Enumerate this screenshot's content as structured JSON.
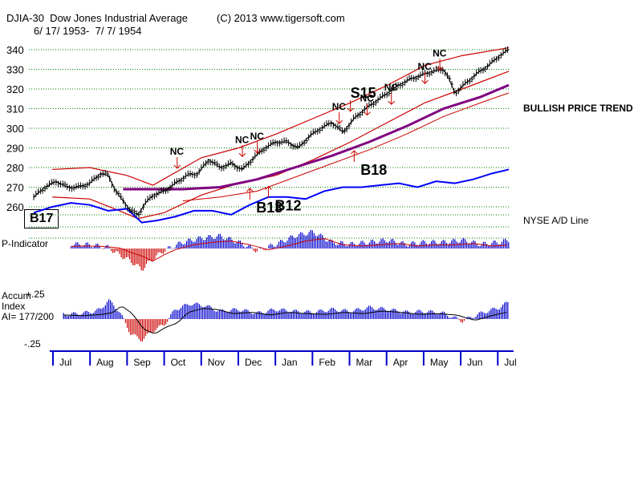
{
  "header": {
    "ticker_title": "DJIA-30  Dow Jones Industrial Average",
    "copyright": "(C) 2013 www.tigersoft.com",
    "date_range": "6/ 17/ 1953-  7/ 7/ 1954"
  },
  "annotations": {
    "trend_label": "BULLISH PRICE TREND",
    "ad_label": "NYSE A/D Line",
    "p_indicator_label": "P-Indicator",
    "accum_label_1": "Accum",
    "accum_label_2": "Index",
    "ai_label": "AI= 177/200",
    "accum_top": "+.25",
    "accum_bottom": "-.25",
    "b17_box": "B17"
  },
  "colors": {
    "price_bar": "#000000",
    "band": "#cc0000",
    "moving_avg": "#800080",
    "ad_line": "#0000ff",
    "hist_pos": "#0000cc",
    "hist_neg": "#cc0000",
    "grid": "#008000",
    "signal": "#cc0000"
  },
  "chart_data": {
    "type": "line",
    "title": "DJIA-30 Dow Jones Industrial Average",
    "y_ticks": [
      260,
      270,
      280,
      290,
      300,
      310,
      320,
      330,
      340
    ],
    "ylim": [
      255,
      345
    ],
    "months": [
      "Jul",
      "Aug",
      "Sep",
      "Oct",
      "Nov",
      "Dec",
      "Jan",
      "Feb",
      "Mar",
      "Apr",
      "May",
      "Jun",
      "Jul"
    ],
    "x_range": [
      0,
      12.75
    ],
    "price": {
      "x": [
        0,
        0.3,
        0.6,
        0.9,
        1.2,
        1.5,
        1.8,
        2.0,
        2.2,
        2.4,
        2.6,
        2.8,
        3.0,
        3.2,
        3.5,
        3.8,
        4.1,
        4.4,
        4.7,
        5.0,
        5.3,
        5.6,
        5.9,
        6.2,
        6.5,
        6.8,
        7.1,
        7.4,
        7.7,
        8.0,
        8.3,
        8.6,
        8.9,
        9.2,
        9.5,
        9.8,
        10.1,
        10.4,
        10.7,
        11.0,
        11.15,
        11.3,
        11.6,
        11.9,
        12.2,
        12.5,
        12.75
      ],
      "y": [
        265,
        270,
        273,
        270,
        270,
        272,
        277,
        276,
        268,
        263,
        258,
        256,
        262,
        266,
        268,
        272,
        276,
        277,
        284,
        280,
        282,
        279,
        285,
        290,
        293,
        293,
        290,
        296,
        300,
        303,
        298,
        305,
        310,
        314,
        318,
        322,
        325,
        327,
        329,
        330,
        325,
        318,
        323,
        328,
        332,
        337,
        340
      ]
    },
    "series": [
      {
        "name": "Upper Band",
        "x": [
          0.5,
          1.5,
          2.5,
          3.2,
          4.5,
          5.5,
          6.5,
          7.5,
          8.5,
          9.5,
          10.5,
          11.5,
          12.75
        ],
        "values": [
          279,
          280,
          276,
          271,
          285,
          290,
          297,
          305,
          313,
          322,
          332,
          337,
          341
        ]
      },
      {
        "name": "Lower Band",
        "x": [
          0.5,
          1.5,
          2.3,
          2.8,
          3.5,
          4.5,
          5.5,
          6.5,
          7.5,
          8.5,
          9.5,
          10.5,
          11.5,
          12.75
        ],
        "values": [
          265,
          264,
          258,
          254,
          257,
          266,
          272,
          276,
          284,
          293,
          303,
          313,
          320,
          329
        ]
      },
      {
        "name": "Moving Average",
        "x": [
          2.4,
          4.0,
          5.0,
          6.0,
          7.0,
          8.0,
          9.0,
          10.0,
          11.0,
          12.0,
          12.75
        ],
        "values": [
          269,
          269,
          270,
          274,
          280,
          286,
          293,
          301,
          310,
          316,
          322
        ]
      },
      {
        "name": "Lower MA Band",
        "x": [
          4.0,
          5.0,
          6.0,
          7.0,
          8.0,
          9.0,
          10.0,
          11.0,
          12.0,
          12.75
        ],
        "values": [
          263,
          265,
          268,
          275,
          282,
          289,
          297,
          306,
          313,
          318
        ]
      },
      {
        "name": "NYSE A/D Line",
        "x": [
          0,
          0.5,
          1.0,
          1.5,
          2.0,
          2.5,
          2.9,
          3.3,
          3.8,
          4.3,
          4.8,
          5.3,
          5.8,
          6.3,
          6.8,
          7.3,
          7.8,
          8.3,
          8.8,
          9.3,
          9.8,
          10.3,
          10.8,
          11.3,
          11.8,
          12.3,
          12.75
        ],
        "values": [
          257,
          260,
          262,
          261,
          258,
          259,
          252,
          253,
          255,
          258,
          258,
          256,
          261,
          265,
          265,
          264,
          268,
          270,
          270,
          271,
          272,
          270,
          273,
          272,
          274,
          277,
          279
        ]
      }
    ],
    "signals": [
      {
        "label": "NC",
        "x": 3.85,
        "price": 279.6,
        "dir": "down"
      },
      {
        "label": "NC",
        "x": 5.6,
        "price": 285.6,
        "dir": "down"
      },
      {
        "label": "NC",
        "x": 6.0,
        "price": 287.4,
        "dir": "down"
      },
      {
        "label": "NC",
        "x": 8.2,
        "price": 302.4,
        "dir": "down"
      },
      {
        "label": "S15",
        "x": 8.5,
        "price": 308.6,
        "dir": "down"
      },
      {
        "label": "NC",
        "x": 8.95,
        "price": 306.7,
        "dir": "down"
      },
      {
        "label": "NC",
        "x": 9.6,
        "price": 312.2,
        "dir": "down"
      },
      {
        "label": "NC",
        "x": 10.5,
        "price": 322.8,
        "dir": "down"
      },
      {
        "label": "NC",
        "x": 10.9,
        "price": 329.6,
        "dir": "down"
      },
      {
        "label": "B13",
        "x": 5.8,
        "price": 269.4,
        "dir": "up"
      },
      {
        "label": "B12",
        "x": 6.3,
        "price": 270.4,
        "dir": "up"
      },
      {
        "label": "B18",
        "x": 8.6,
        "price": 288.6,
        "dir": "up"
      }
    ],
    "p_indicator": {
      "x": [
        0,
        0.5,
        1.0,
        1.5,
        2.0,
        2.3,
        2.6,
        2.9,
        3.2,
        3.5,
        4.0,
        4.5,
        5.0,
        5.5,
        6.0,
        6.5,
        7.0,
        7.5,
        8.0,
        8.5,
        9.0,
        9.5,
        10.0,
        10.5,
        11.0,
        11.5,
        12.0,
        12.5,
        12.75
      ],
      "values": [
        0.1,
        0.15,
        0.2,
        0.18,
        0.05,
        -0.3,
        -0.6,
        -1.0,
        -0.5,
        -0.1,
        0.3,
        0.5,
        0.6,
        0.3,
        -0.1,
        0.2,
        0.6,
        0.8,
        0.3,
        0.2,
        0.3,
        0.4,
        0.2,
        0.3,
        0.3,
        0.4,
        0.2,
        0.3,
        0.4
      ]
    },
    "accum_index": {
      "ylim": [
        -0.25,
        0.25
      ],
      "x": [
        0,
        0.5,
        1.0,
        1.5,
        1.8,
        2.0,
        2.3,
        2.6,
        2.9,
        3.2,
        3.5,
        3.8,
        4.2,
        4.6,
        5.0,
        5.5,
        6.0,
        6.5,
        7.0,
        7.5,
        8.0,
        8.5,
        9.0,
        9.5,
        10.0,
        10.5,
        11.0,
        11.5,
        12.0,
        12.5,
        12.75
      ],
      "values": [
        0.05,
        0.06,
        0.05,
        0.07,
        0.1,
        0.2,
        0.08,
        -0.15,
        -0.22,
        -0.12,
        -0.06,
        0.1,
        0.16,
        0.14,
        0.08,
        0.1,
        0.06,
        0.1,
        0.08,
        0.07,
        0.1,
        0.08,
        0.12,
        0.1,
        0.07,
        0.08,
        0.06,
        -0.02,
        0.06,
        0.12,
        0.18
      ]
    }
  }
}
